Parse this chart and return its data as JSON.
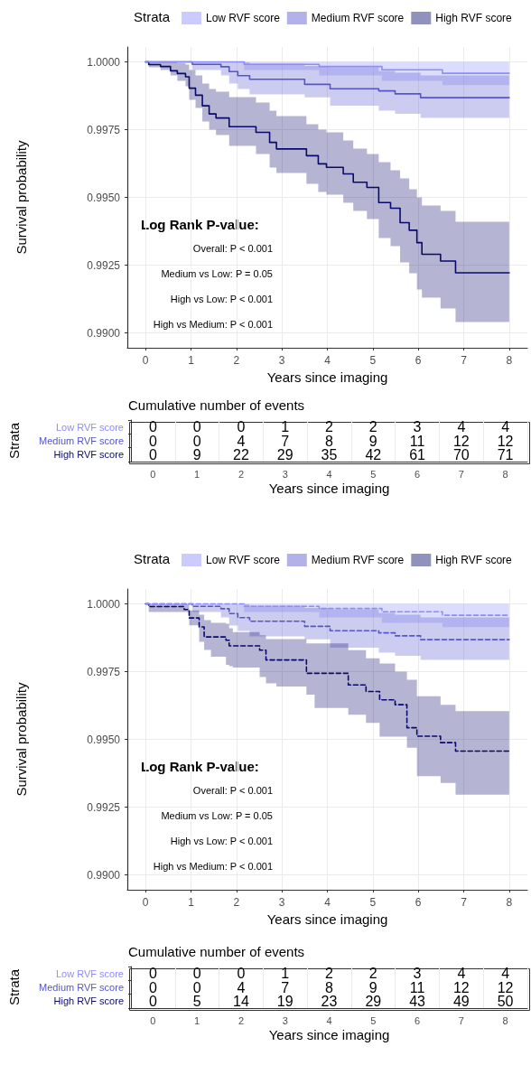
{
  "chart_data": [
    {
      "type": "step",
      "xlabel": "Years since imaging",
      "ylabel": "Survival probability",
      "legend_title": "Strata",
      "legend": "top",
      "grid": true,
      "line_style": "solid",
      "marker": "none",
      "xlim": [
        -0.4,
        8.4
      ],
      "xticks": [
        0,
        1,
        2,
        3,
        4,
        5,
        6,
        7,
        8
      ],
      "ylim": [
        0.98945,
        1.00055
      ],
      "yticks": [
        {
          "value": 0.99,
          "label": "0.9900"
        },
        {
          "value": 0.9925,
          "label": "0.9925"
        },
        {
          "value": 0.995,
          "label": "0.9950"
        },
        {
          "value": 0.9975,
          "label": "0.9975"
        },
        {
          "value": 1.0,
          "label": "1.0000"
        }
      ],
      "annotations": [
        "Log Rank P-value:",
        "Overall: P < 0.001",
        "Medium vs Low: P = 0.05",
        "High vs Low: P < 0.001",
        "High vs Medium: P < 0.001"
      ],
      "series": [
        {
          "name": "Low RVF score",
          "color": "#8c8cff",
          "x": [
            0,
            2.17,
            3.82,
            5.2,
            6.53,
            8
          ],
          "values": [
            1.0,
            0.99991,
            0.99983,
            0.99971,
            0.99958,
            0.99958
          ],
          "lower": [
            1.0,
            0.9997,
            0.9995,
            0.9993,
            0.99914,
            0.99914
          ],
          "upper": [
            1.0,
            1.0,
            1.0,
            1.0,
            1.0,
            1.0
          ]
        },
        {
          "name": "Medium RVF score",
          "color": "#5555cc",
          "x": [
            0,
            1.03,
            1.66,
            1.84,
            2.03,
            2.29,
            3.5,
            4.06,
            5.13,
            5.49,
            6.05,
            8
          ],
          "values": [
            1.0,
            0.99991,
            0.99982,
            0.99964,
            0.99949,
            0.99936,
            0.99917,
            0.99901,
            0.99893,
            0.99882,
            0.99868,
            0.99868
          ],
          "lower": [
            1.0,
            0.9997,
            0.9995,
            0.9992,
            0.999,
            0.9988,
            0.99869,
            0.99838,
            0.9982,
            0.99808,
            0.99793,
            0.99793
          ],
          "upper": [
            1.0,
            1.0,
            1.0,
            1.0,
            0.99998,
            0.99993,
            0.99985,
            0.9998,
            0.99967,
            0.9996,
            0.9995,
            0.9995
          ]
        },
        {
          "name": "High RVF score",
          "color": "#0a0a6e",
          "x": [
            0,
            0.07,
            0.33,
            0.55,
            0.7,
            0.88,
            0.96,
            1.1,
            1.25,
            1.4,
            1.55,
            1.84,
            2.43,
            2.73,
            2.88,
            3.54,
            3.8,
            3.98,
            4.35,
            4.57,
            4.87,
            5.13,
            5.39,
            5.6,
            5.8,
            5.97,
            6.08,
            6.49,
            6.82,
            8
          ],
          "values": [
            1.0,
            0.9999,
            0.99983,
            0.99967,
            0.99957,
            0.99945,
            0.99903,
            0.99877,
            0.99838,
            0.99808,
            0.99793,
            0.99761,
            0.9974,
            0.99703,
            0.99679,
            0.99654,
            0.99624,
            0.99611,
            0.99587,
            0.99556,
            0.99537,
            0.99481,
            0.9946,
            0.99407,
            0.99379,
            0.99333,
            0.9929,
            0.99265,
            0.99222,
            0.99222
          ],
          "lower": [
            1.0,
            0.9998,
            0.9997,
            0.9995,
            0.9993,
            0.9991,
            0.9986,
            0.9983,
            0.9978,
            0.9975,
            0.9973,
            0.9969,
            0.9966,
            0.9961,
            0.9959,
            0.9955,
            0.9952,
            0.9951,
            0.9948,
            0.9945,
            0.9942,
            0.9935,
            0.9932,
            0.9926,
            0.9922,
            0.9916,
            0.9913,
            0.9909,
            0.9904,
            0.9904
          ],
          "upper": [
            1.0,
            1.0,
            1.0,
            1.0,
            0.99995,
            0.9999,
            0.9997,
            0.9995,
            0.9992,
            0.999,
            0.9989,
            0.9987,
            0.9985,
            0.9982,
            0.998,
            0.9977,
            0.9975,
            0.9974,
            0.9971,
            0.9968,
            0.9966,
            0.9963,
            0.996,
            0.9957,
            0.9953,
            0.995,
            0.9947,
            0.9945,
            0.9941,
            0.9941
          ]
        }
      ]
    },
    {
      "type": "heatmap",
      "title": "Cumulative number of events",
      "xlabel": "Years since imaging",
      "ylabel": "Strata",
      "data_labels": true,
      "grid": true,
      "categories": [
        "0",
        "1",
        "2",
        "3",
        "4",
        "5",
        "6",
        "7",
        "8"
      ],
      "y_categories": [
        "Low RVF score",
        "Medium RVF score",
        "High RVF score"
      ],
      "cells": [
        [
          0,
          0,
          0,
          1,
          2,
          2,
          3,
          4,
          4
        ],
        [
          0,
          0,
          4,
          7,
          8,
          9,
          11,
          12,
          12
        ],
        [
          0,
          9,
          22,
          29,
          35,
          42,
          61,
          70,
          71
        ]
      ]
    },
    {
      "type": "step",
      "xlabel": "Years since imaging",
      "ylabel": "Survival probability",
      "legend_title": "Strata",
      "legend": "top",
      "grid": true,
      "line_style": "dashed",
      "marker": "none",
      "xlim": [
        -0.4,
        8.4
      ],
      "xticks": [
        0,
        1,
        2,
        3,
        4,
        5,
        6,
        7,
        8
      ],
      "ylim": [
        0.98945,
        1.00055
      ],
      "yticks": [
        {
          "value": 0.99,
          "label": "0.9900"
        },
        {
          "value": 0.9925,
          "label": "0.9925"
        },
        {
          "value": 0.995,
          "label": "0.9950"
        },
        {
          "value": 0.9975,
          "label": "0.9975"
        },
        {
          "value": 1.0,
          "label": "1.0000"
        }
      ],
      "annotations": [
        "Log Rank P-value:",
        "Overall: P < 0.001",
        "Medium vs Low: P = 0.05",
        "High vs Low: P < 0.001",
        "High vs Medium: P < 0.001"
      ],
      "series": [
        {
          "name": "Low RVF score",
          "color": "#8c8cff",
          "x": [
            0,
            2.17,
            3.82,
            5.2,
            6.53,
            8
          ],
          "values": [
            1.0,
            0.99991,
            0.99983,
            0.99971,
            0.99958,
            0.99958
          ],
          "lower": [
            1.0,
            0.9997,
            0.9995,
            0.9993,
            0.99914,
            0.99914
          ],
          "upper": [
            1.0,
            1.0,
            1.0,
            1.0,
            1.0,
            1.0
          ]
        },
        {
          "name": "Medium RVF score",
          "color": "#5555cc",
          "x": [
            0,
            1.03,
            1.66,
            1.84,
            2.03,
            2.29,
            3.5,
            4.06,
            5.13,
            5.49,
            6.05,
            8
          ],
          "values": [
            1.0,
            0.99991,
            0.99982,
            0.99964,
            0.99949,
            0.99936,
            0.99917,
            0.99901,
            0.99893,
            0.99882,
            0.99868,
            0.99868
          ],
          "lower": [
            1.0,
            0.9997,
            0.9995,
            0.9992,
            0.999,
            0.9988,
            0.99869,
            0.99838,
            0.9982,
            0.99808,
            0.99793,
            0.99793
          ],
          "upper": [
            1.0,
            1.0,
            1.0,
            1.0,
            0.99998,
            0.99993,
            0.99985,
            0.9998,
            0.99967,
            0.9996,
            0.9995,
            0.9995
          ]
        },
        {
          "name": "High RVF score",
          "color": "#0a0a6e",
          "x": [
            0,
            0.07,
            0.85,
            0.96,
            1.18,
            1.29,
            1.44,
            1.77,
            1.84,
            1.92,
            2.51,
            2.65,
            2.88,
            3.54,
            3.72,
            4.46,
            4.85,
            5.15,
            5.49,
            5.75,
            5.97,
            6.49,
            6.82,
            8
          ],
          "values": [
            1.0,
            0.9999,
            0.99979,
            0.99948,
            0.99915,
            0.99878,
            0.99878,
            0.99866,
            0.99845,
            0.99845,
            0.99829,
            0.99793,
            0.99793,
            0.99744,
            0.99744,
            0.99701,
            0.99677,
            0.99646,
            0.99628,
            0.99543,
            0.99512,
            0.99488,
            0.99457,
            0.99457
          ],
          "lower": [
            1.0,
            0.9997,
            0.9997,
            0.99921,
            0.9986,
            0.9983,
            0.99805,
            0.99775,
            0.9977,
            0.99765,
            0.9973,
            0.99707,
            0.99695,
            0.99665,
            0.99616,
            0.99591,
            0.99561,
            0.9951,
            0.9951,
            0.99469,
            0.99364,
            0.99339,
            0.99296,
            0.99296
          ],
          "upper": [
            1.0,
            1.0,
            1.0,
            0.99976,
            0.9996,
            0.9994,
            0.9993,
            0.99927,
            0.9991,
            0.99896,
            0.99884,
            0.9987,
            0.9987,
            0.99854,
            0.99854,
            0.99829,
            0.99799,
            0.9978,
            0.9975,
            0.9972,
            0.99659,
            0.99628,
            0.99604,
            0.99604
          ]
        }
      ]
    },
    {
      "type": "heatmap",
      "title": "Cumulative number of events",
      "xlabel": "Years since imaging",
      "ylabel": "Strata",
      "data_labels": true,
      "grid": true,
      "categories": [
        "0",
        "1",
        "2",
        "3",
        "4",
        "5",
        "6",
        "7",
        "8"
      ],
      "y_categories": [
        "Low RVF score",
        "Medium RVF score",
        "High RVF score"
      ],
      "cells": [
        [
          0,
          0,
          0,
          1,
          2,
          2,
          3,
          4,
          4
        ],
        [
          0,
          0,
          4,
          7,
          8,
          9,
          11,
          12,
          12
        ],
        [
          0,
          5,
          14,
          19,
          23,
          29,
          43,
          49,
          50
        ]
      ]
    }
  ]
}
